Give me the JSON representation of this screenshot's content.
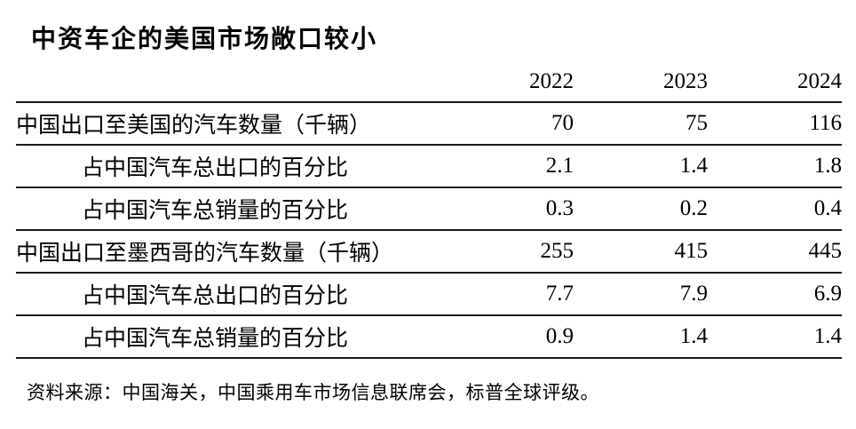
{
  "chart_data": {
    "type": "table",
    "title": "中资车企的美国市场敞口较小",
    "years": [
      "2022",
      "2023",
      "2024"
    ],
    "rows": [
      {
        "label": "中国出口至美国的汽车数量（千辆）",
        "indent": false,
        "values": [
          "70",
          "75",
          "116"
        ]
      },
      {
        "label": "占中国汽车总出口的百分比",
        "indent": true,
        "values": [
          "2.1",
          "1.4",
          "1.8"
        ]
      },
      {
        "label": "占中国汽车总销量的百分比",
        "indent": true,
        "values": [
          "0.3",
          "0.2",
          "0.4"
        ]
      },
      {
        "label": "中国出口至墨西哥的汽车数量（千辆）",
        "indent": false,
        "values": [
          "255",
          "415",
          "445"
        ]
      },
      {
        "label": "占中国汽车总出口的百分比",
        "indent": true,
        "values": [
          "7.7",
          "7.9",
          "6.9"
        ]
      },
      {
        "label": "占中国汽车总销量的百分比",
        "indent": true,
        "values": [
          "0.9",
          "1.4",
          "1.4"
        ]
      }
    ],
    "source": "资料来源：中国海关，中国乘用车市场信息联席会，标普全球评级。",
    "layout": {
      "legend": "none",
      "grid": "horizontal-rules-only",
      "value_alignment": "right",
      "header_alignment": "right"
    }
  },
  "colors": {
    "background": "#ffffff",
    "text": "#000000",
    "rule": "#1a1a1a"
  }
}
